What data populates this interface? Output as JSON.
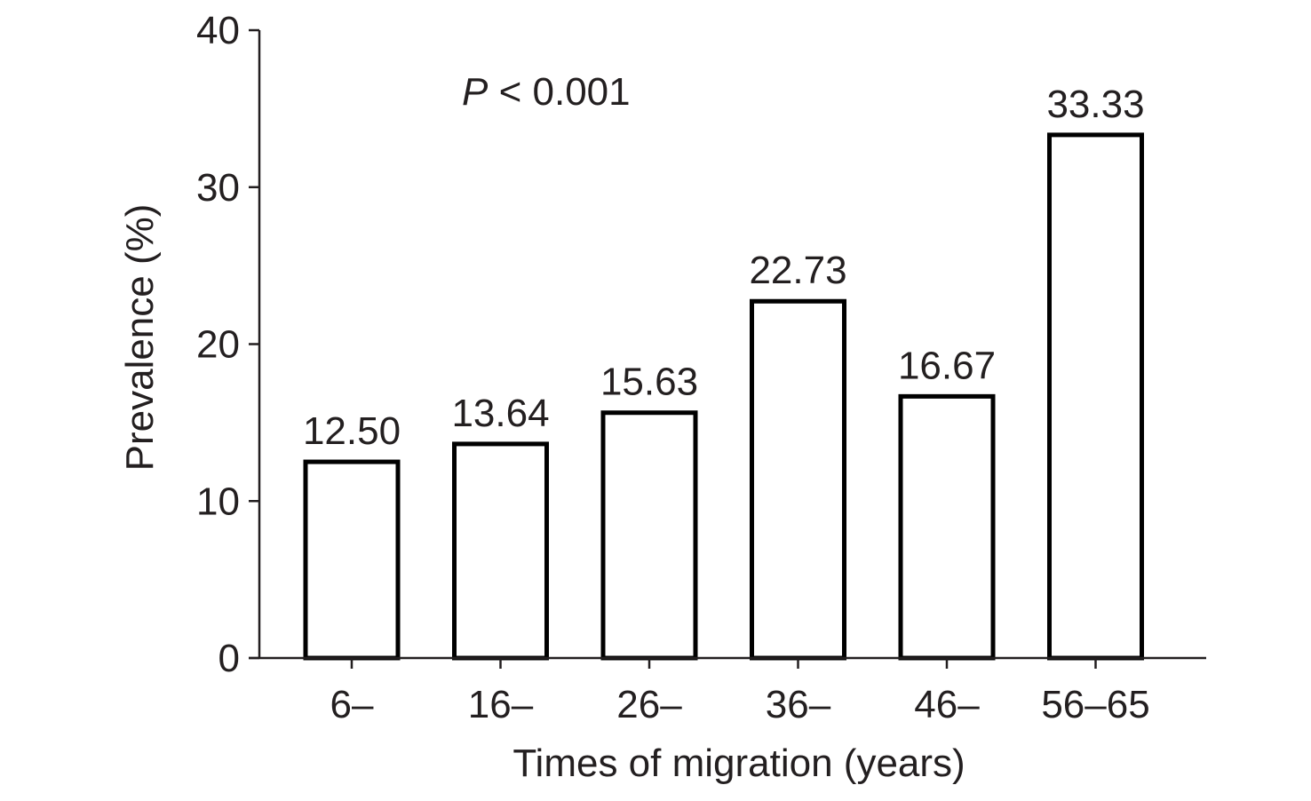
{
  "chart_data": {
    "type": "bar",
    "title": "",
    "xlabel": "Times of migration (years)",
    "ylabel": "Prevalence (%)",
    "categories": [
      "6–",
      "16–",
      "26–",
      "36–",
      "46–",
      "56–65"
    ],
    "values": [
      12.5,
      13.64,
      15.63,
      22.73,
      16.67,
      33.33
    ],
    "value_labels": [
      "12.50",
      "13.64",
      "15.63",
      "22.73",
      "16.67",
      "33.33"
    ],
    "ylim": [
      0,
      40
    ],
    "yticks": [
      0,
      10,
      20,
      30,
      40
    ],
    "ytick_labels": [
      "0",
      "10",
      "20",
      "30",
      "40"
    ],
    "annotation": {
      "italic": "P",
      "rest": " < 0.001"
    },
    "grid": false,
    "legend": "none",
    "colors": {
      "bar_fill": "#ffffff",
      "bar_stroke": "#000000",
      "axis": "#231f20"
    }
  }
}
